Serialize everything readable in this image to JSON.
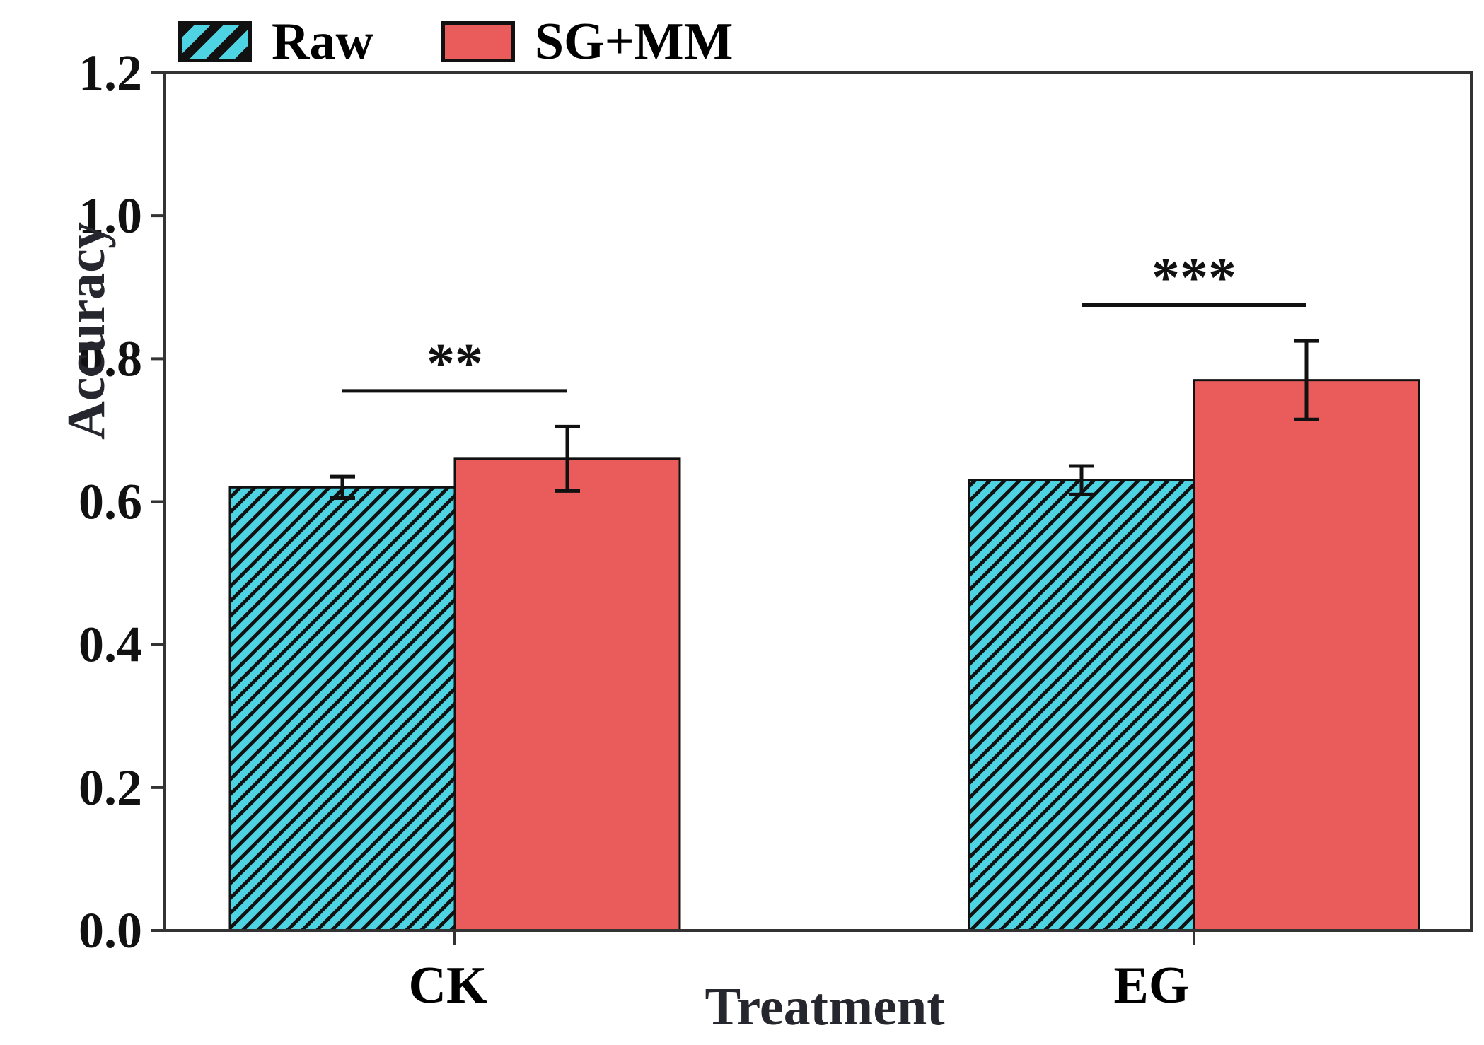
{
  "figure": {
    "background": "#ffffff",
    "legend": {
      "position": "top-left",
      "items": [
        {
          "label": "Raw",
          "color": "#4ed3e3",
          "hatched": true,
          "edge_color": "#111111"
        },
        {
          "label": "SG+MM",
          "color": "#ea5c5c",
          "hatched": false,
          "edge_color": "#111111"
        }
      ]
    },
    "y_axis": {
      "label": "Accuracy"
    },
    "x_axis": {
      "label": "Treatment"
    }
  },
  "chart_data": {
    "type": "bar",
    "title": "",
    "xlabel": "Treatment",
    "ylabel": "Accuracy",
    "categories": [
      "CK",
      "EG"
    ],
    "series": [
      {
        "name": "Raw",
        "values": [
          0.62,
          0.63
        ],
        "errors": [
          0.015,
          0.02
        ],
        "color": "#4ed3e3",
        "hatch": "diagonal",
        "edge_color": "#111111"
      },
      {
        "name": "SG+MM",
        "values": [
          0.66,
          0.77
        ],
        "errors": [
          0.045,
          0.055
        ],
        "color": "#ea5c5c",
        "hatch": "none",
        "edge_color": "#111111"
      }
    ],
    "ylim": [
      0,
      1.2
    ],
    "yticks": [
      0.0,
      0.2,
      0.4,
      0.6,
      0.8,
      1.0,
      1.2
    ],
    "ytick_labels": [
      "0.0",
      "0.2",
      "0.4",
      "0.6",
      "0.8",
      "1.0",
      "1.2"
    ],
    "significance": [
      {
        "category": "CK",
        "label": "**",
        "line_y": 0.755
      },
      {
        "category": "EG",
        "label": "***",
        "line_y": 0.875
      }
    ],
    "error_bar_color": "#111111",
    "grid": false,
    "legend_position": "top-left"
  }
}
